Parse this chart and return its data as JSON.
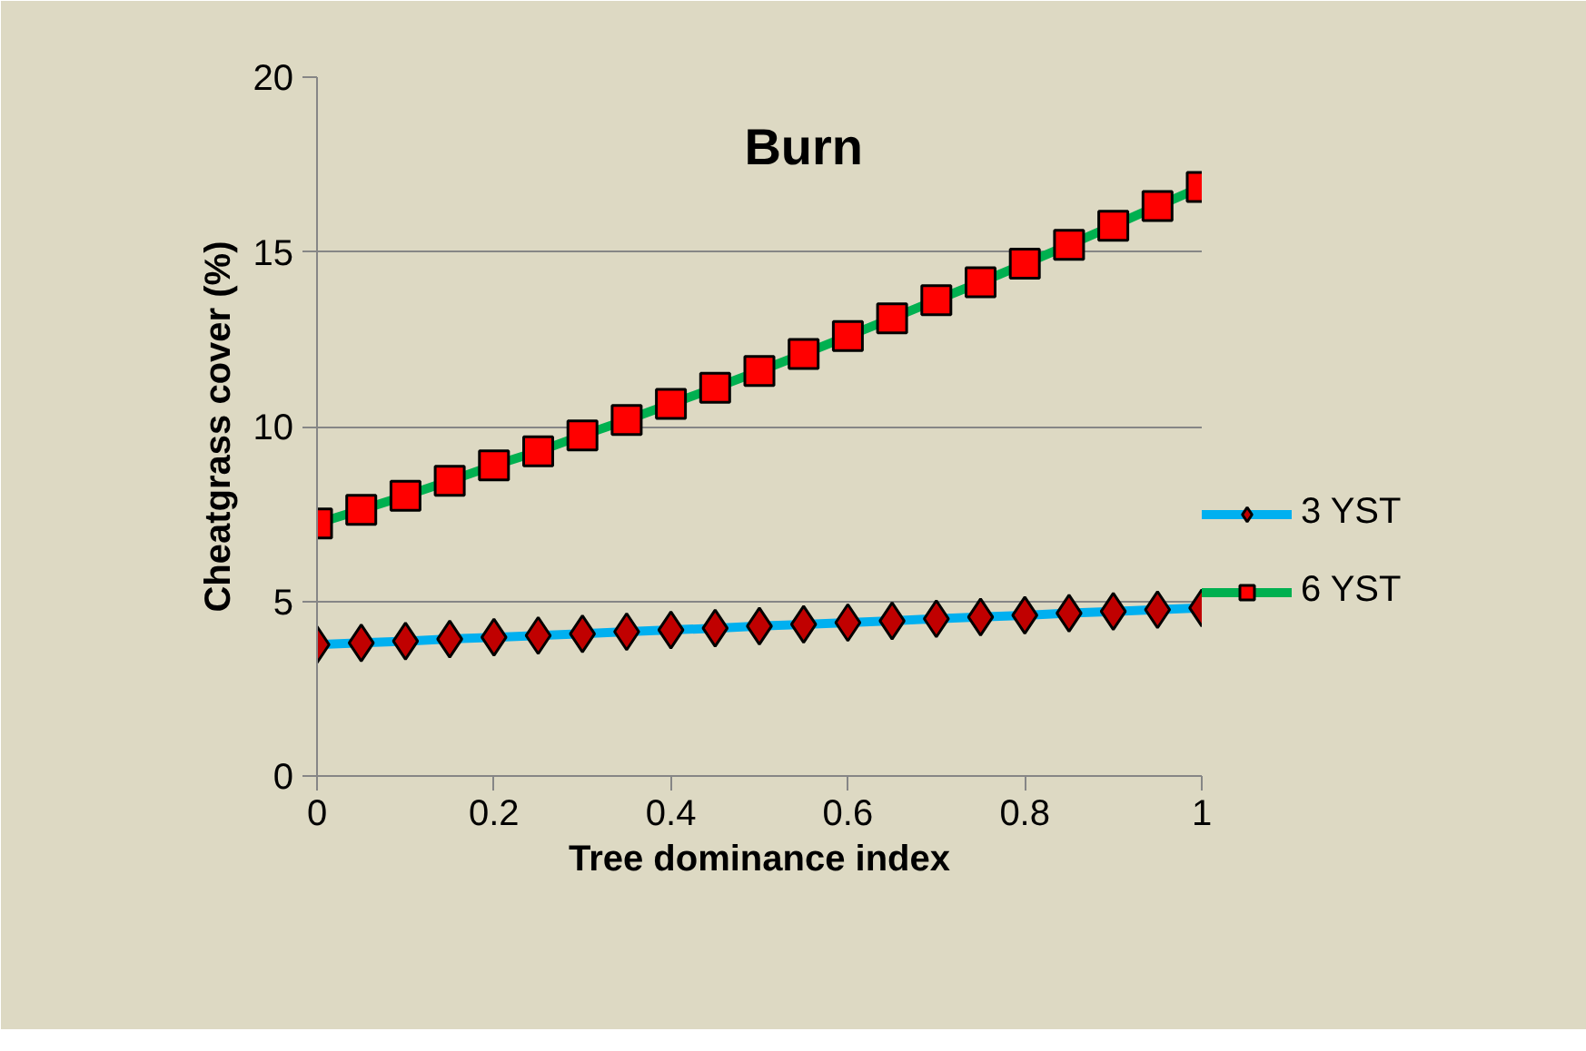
{
  "chart_data": {
    "type": "line",
    "title": "Burn",
    "xlabel": "Tree dominance index",
    "ylabel": "Cheatgrass cover (%)",
    "x": [
      0,
      0.05,
      0.1,
      0.15,
      0.2,
      0.25,
      0.3,
      0.35,
      0.4,
      0.45,
      0.5,
      0.55,
      0.6,
      0.65,
      0.7,
      0.75,
      0.8,
      0.85,
      0.9,
      0.95,
      1
    ],
    "series": [
      {
        "name": "3 YST",
        "color": "#00b0f0",
        "marker": "diamond",
        "values": [
          3.76,
          3.81,
          3.86,
          3.92,
          3.97,
          4.02,
          4.07,
          4.13,
          4.18,
          4.23,
          4.29,
          4.34,
          4.39,
          4.44,
          4.5,
          4.55,
          4.6,
          4.66,
          4.71,
          4.76,
          4.81
        ]
      },
      {
        "name": "6 YST",
        "color": "#00b050",
        "marker": "square",
        "values": [
          7.23,
          7.62,
          8.02,
          8.45,
          8.89,
          9.29,
          9.75,
          10.19,
          10.65,
          11.11,
          11.59,
          12.08,
          12.59,
          13.1,
          13.62,
          14.13,
          14.66,
          15.2,
          15.75,
          16.31,
          16.86
        ]
      }
    ],
    "xlim": [
      0,
      1
    ],
    "xticks": [
      0,
      {
        "value": 0.2,
        "label": "0.2"
      },
      {
        "value": 0.4,
        "label": "0.4"
      },
      {
        "value": 0.6,
        "label": "0.6"
      },
      {
        "value": 0.8,
        "label": "0.8"
      },
      1
    ],
    "ylim": [
      0,
      20
    ],
    "yticks": [
      0,
      5,
      10,
      15,
      20
    ],
    "grid": "y",
    "legend": "right",
    "line_style": "solid"
  }
}
